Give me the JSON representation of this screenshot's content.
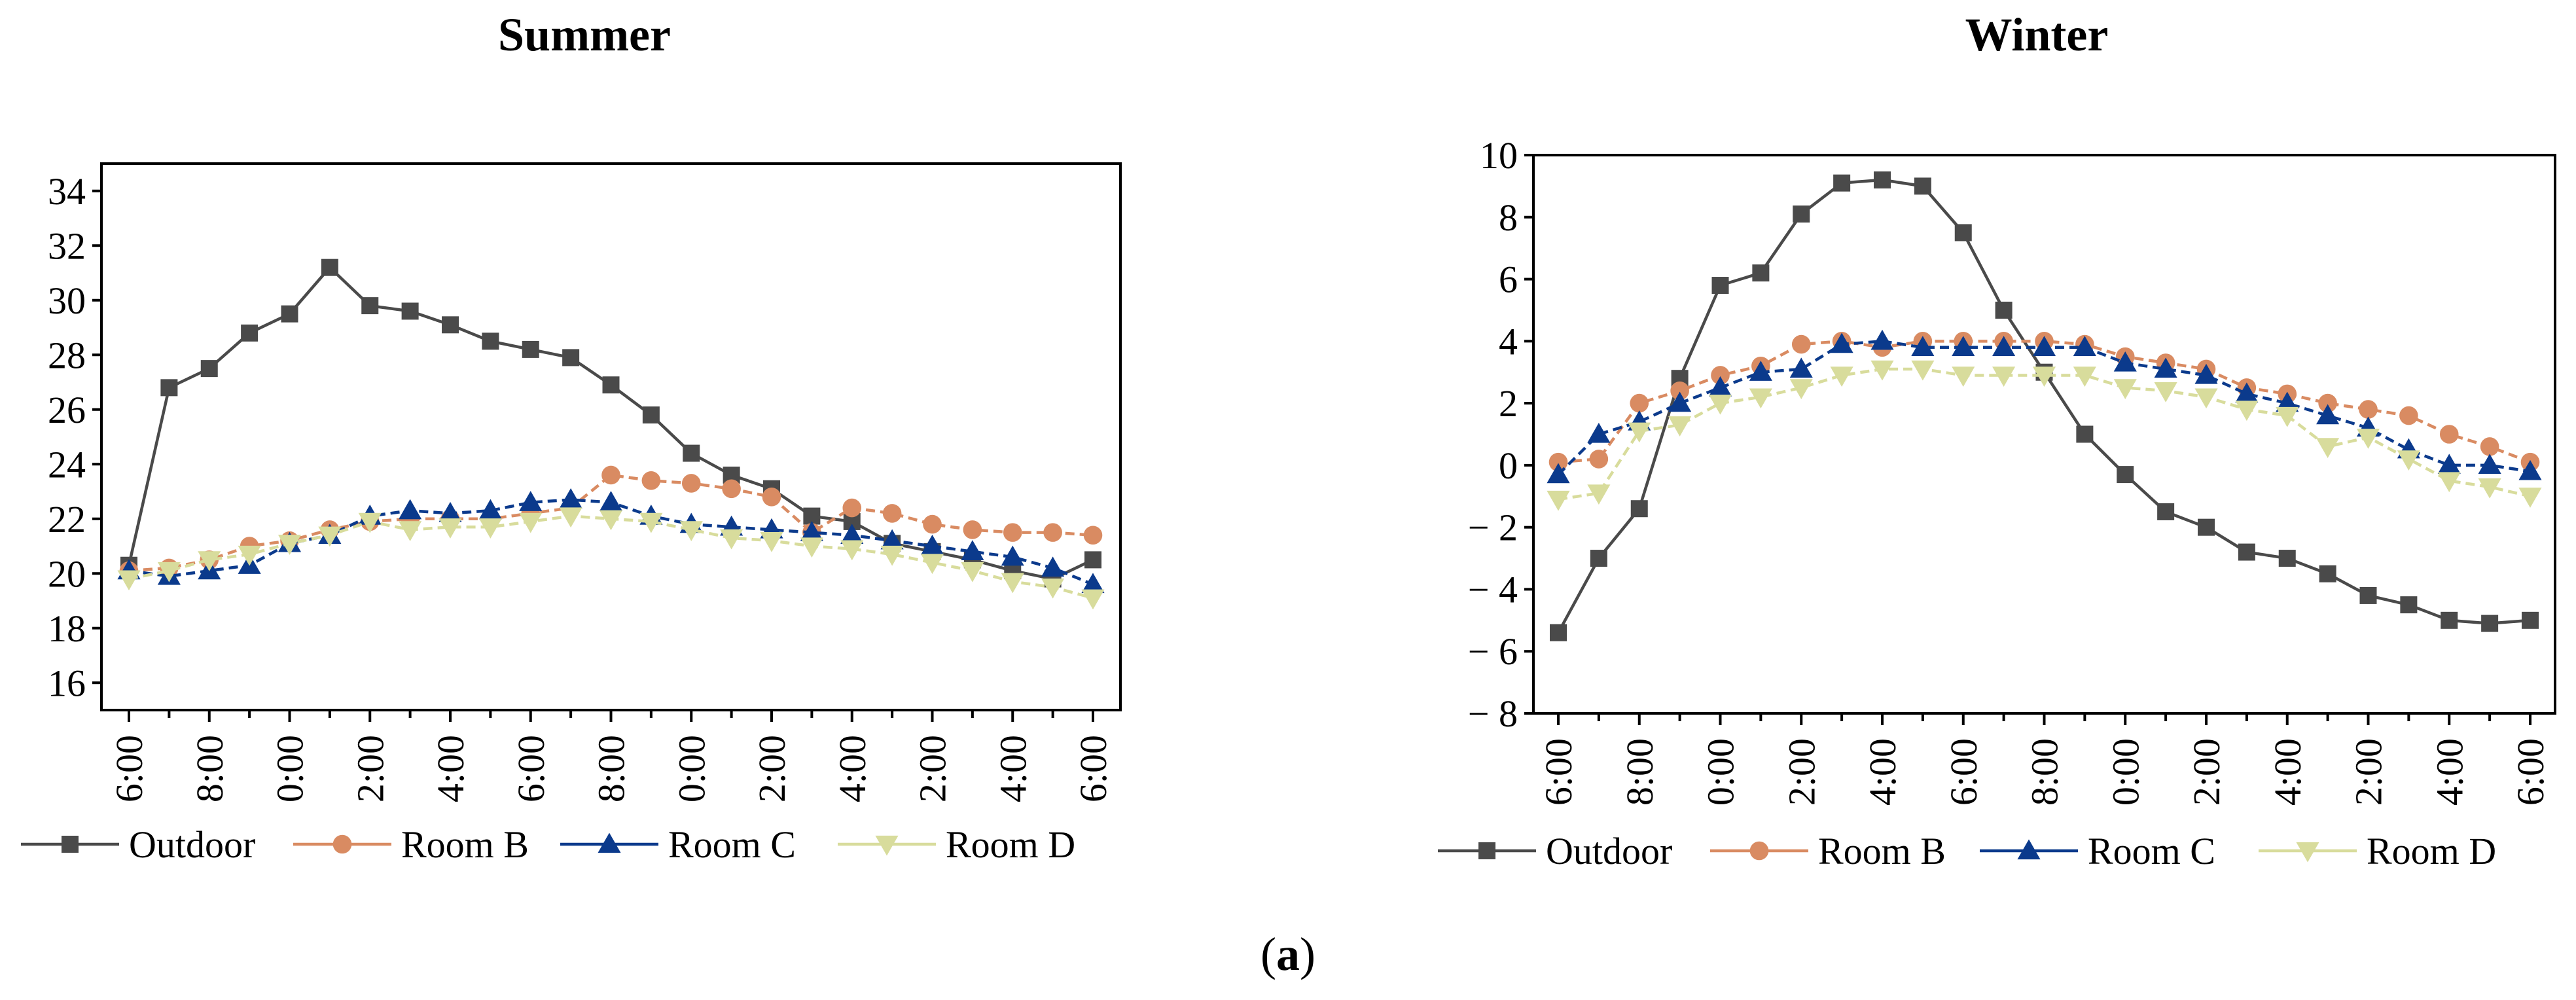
{
  "caption": {
    "prefix": "(",
    "letter": "a",
    "suffix": ")"
  },
  "colors": {
    "Outdoor": "#4a4a4a",
    "Room B": "#d98b62",
    "Room C": "#0b3a8c",
    "Room D": "#d8dc9c",
    "axis": "#000000"
  },
  "markers": {
    "Outdoor": "square",
    "Room B": "circle",
    "Room C": "triangle-up",
    "Room D": "triangle-down"
  },
  "chart_data": [
    {
      "type": "line",
      "title": "Summer",
      "x_tick_labels": [
        "6:00",
        "",
        "8:00",
        "",
        "0:00",
        "",
        "2:00",
        "",
        "4:00",
        "",
        "6:00",
        "",
        "8:00",
        "",
        "0:00",
        "",
        "2:00",
        "",
        "4:00",
        "",
        "2:00",
        "",
        "4:00",
        "",
        "6:00"
      ],
      "x": [
        0,
        1,
        2,
        3,
        4,
        5,
        6,
        7,
        8,
        9,
        10,
        11,
        12,
        13,
        14,
        15,
        16,
        17,
        18,
        19,
        20,
        21,
        22,
        23,
        24
      ],
      "ylim": [
        15,
        35
      ],
      "yticks": [
        16,
        18,
        20,
        22,
        24,
        26,
        28,
        30,
        32,
        34
      ],
      "series": [
        {
          "name": "Outdoor",
          "values": [
            20.3,
            26.8,
            27.5,
            28.8,
            29.5,
            31.2,
            29.8,
            29.6,
            29.1,
            28.5,
            28.2,
            27.9,
            26.9,
            25.8,
            24.4,
            23.6,
            23.1,
            22.1,
            21.9,
            21.1,
            20.8,
            20.5,
            20.1,
            19.8,
            20.5
          ]
        },
        {
          "name": "Room B",
          "values": [
            20.1,
            20.2,
            20.5,
            21.0,
            21.2,
            21.6,
            21.9,
            22.0,
            22.0,
            22.0,
            22.2,
            22.4,
            23.6,
            23.4,
            23.3,
            23.1,
            22.8,
            21.5,
            22.4,
            22.2,
            21.8,
            21.6,
            21.5,
            21.5,
            21.4
          ]
        },
        {
          "name": "Room C",
          "values": [
            20.1,
            19.9,
            20.1,
            20.3,
            21.1,
            21.4,
            22.1,
            22.3,
            22.2,
            22.3,
            22.6,
            22.7,
            22.6,
            22.1,
            21.8,
            21.7,
            21.6,
            21.5,
            21.4,
            21.2,
            21.0,
            20.8,
            20.6,
            20.2,
            19.6
          ]
        },
        {
          "name": "Room D",
          "values": [
            19.8,
            20.1,
            20.5,
            20.7,
            21.1,
            21.4,
            21.9,
            21.6,
            21.7,
            21.7,
            21.9,
            22.1,
            22.0,
            21.9,
            21.6,
            21.3,
            21.2,
            21.0,
            20.9,
            20.7,
            20.4,
            20.1,
            19.7,
            19.5,
            19.1
          ]
        }
      ],
      "legend": [
        "Outdoor",
        "Room B",
        "Room C",
        "Room D"
      ],
      "legend_position": "bottom"
    },
    {
      "type": "line",
      "title": "Winter",
      "x_tick_labels": [
        "6:00",
        "",
        "8:00",
        "",
        "0:00",
        "",
        "2:00",
        "",
        "4:00",
        "",
        "6:00",
        "",
        "8:00",
        "",
        "0:00",
        "",
        "2:00",
        "",
        "4:00",
        "",
        "2:00",
        "",
        "4:00",
        "",
        "6:00"
      ],
      "x": [
        0,
        1,
        2,
        3,
        4,
        5,
        6,
        7,
        8,
        9,
        10,
        11,
        12,
        13,
        14,
        15,
        16,
        17,
        18,
        19,
        20,
        21,
        22,
        23,
        24
      ],
      "ylim": [
        -8,
        10
      ],
      "yticks": [
        -8,
        -6,
        -4,
        -2,
        0,
        2,
        4,
        6,
        8,
        10
      ],
      "series": [
        {
          "name": "Outdoor",
          "values": [
            -5.4,
            -3.0,
            -1.4,
            2.8,
            5.8,
            6.2,
            8.1,
            9.1,
            9.2,
            9.0,
            7.5,
            5.0,
            3.0,
            1.0,
            -0.3,
            -1.5,
            -2.0,
            -2.8,
            -3.0,
            -3.5,
            -4.2,
            -4.5,
            -5.0,
            -5.1,
            -5.0
          ]
        },
        {
          "name": "Room B",
          "values": [
            0.1,
            0.2,
            2.0,
            2.4,
            2.9,
            3.2,
            3.9,
            4.0,
            3.8,
            4.0,
            4.0,
            4.0,
            4.0,
            3.9,
            3.5,
            3.3,
            3.1,
            2.5,
            2.3,
            2.0,
            1.8,
            1.6,
            1.0,
            0.6,
            0.1
          ]
        },
        {
          "name": "Room C",
          "values": [
            -0.3,
            1.0,
            1.4,
            2.0,
            2.5,
            3.0,
            3.1,
            3.9,
            4.0,
            3.8,
            3.8,
            3.8,
            3.8,
            3.8,
            3.3,
            3.1,
            2.9,
            2.3,
            2.0,
            1.6,
            1.2,
            0.5,
            0.0,
            0.0,
            -0.2
          ]
        },
        {
          "name": "Room D",
          "values": [
            -1.1,
            -0.9,
            1.1,
            1.3,
            2.0,
            2.2,
            2.5,
            2.9,
            3.1,
            3.1,
            2.9,
            2.9,
            2.9,
            2.9,
            2.5,
            2.4,
            2.2,
            1.8,
            1.6,
            0.6,
            0.9,
            0.2,
            -0.5,
            -0.7,
            -1.0
          ]
        }
      ],
      "legend": [
        "Outdoor",
        "Room B",
        "Room C",
        "Room D"
      ],
      "legend_position": "bottom"
    }
  ]
}
